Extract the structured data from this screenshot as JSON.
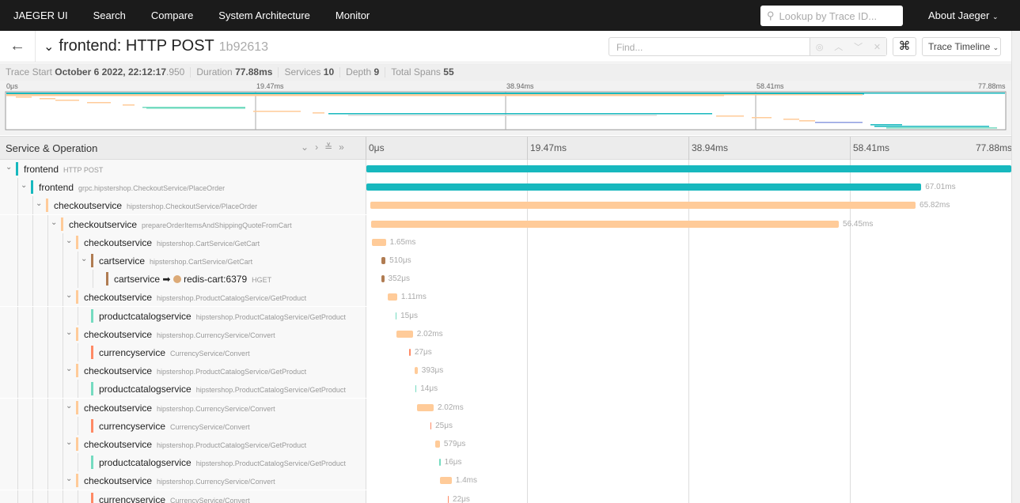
{
  "nav": {
    "brand": "JAEGER UI",
    "items": [
      "Search",
      "Compare",
      "System Architecture",
      "Monitor"
    ],
    "lookup_placeholder": "Lookup by Trace ID...",
    "about": "About Jaeger"
  },
  "header": {
    "title": "frontend: HTTP POST",
    "trace_id": "1b92613",
    "find_placeholder": "Find...",
    "view_label": "Trace Timeline"
  },
  "meta": {
    "trace_start_label": "Trace Start",
    "trace_start": "October 6 2022, 22:12:17",
    "trace_start_ms": ".950",
    "duration_label": "Duration",
    "duration": "77.88ms",
    "services_label": "Services",
    "services": "10",
    "depth_label": "Depth",
    "depth": "9",
    "total_spans_label": "Total Spans",
    "total_spans": "55"
  },
  "ticks": [
    "0μs",
    "19.47ms",
    "38.94ms",
    "58.41ms",
    "77.88ms"
  ],
  "timeline_header": "Service & Operation",
  "total_ms": 77.88,
  "colors": {
    "frontend": "#17b8be",
    "checkoutservice": "#ffcb99",
    "cartservice": "#b07c52",
    "productcatalogservice": "#75dbc0",
    "currencyservice": "#ff8a65"
  },
  "spans": [
    {
      "service": "frontend",
      "op": "HTTP POST",
      "level": 0,
      "expanded": true,
      "start": 0,
      "dur": 77.88,
      "label": ""
    },
    {
      "service": "frontend",
      "op": "grpc.hipstershop.CheckoutService/PlaceOrder",
      "level": 1,
      "expanded": true,
      "start": 0,
      "dur": 67.01,
      "label": "67.01ms"
    },
    {
      "service": "checkoutservice",
      "op": "hipstershop.CheckoutService/PlaceOrder",
      "level": 2,
      "expanded": true,
      "start": 0.5,
      "dur": 65.82,
      "label": "65.82ms"
    },
    {
      "service": "checkoutservice",
      "op": "prepareOrderItemsAndShippingQuoteFromCart",
      "level": 3,
      "expanded": true,
      "start": 0.6,
      "dur": 56.45,
      "label": "56.45ms"
    },
    {
      "service": "checkoutservice",
      "op": "hipstershop.CartService/GetCart",
      "level": 4,
      "expanded": true,
      "start": 0.7,
      "dur": 1.65,
      "label": "1.65ms"
    },
    {
      "service": "cartservice",
      "op": "hipstershop.CartService/GetCart",
      "level": 5,
      "expanded": true,
      "start": 1.8,
      "dur": 0.51,
      "label": "510μs"
    },
    {
      "service": "cartservice",
      "peer": "redis-cart:6379",
      "op": "HGET",
      "level": 6,
      "expanded": null,
      "start": 1.8,
      "dur": 0.352,
      "label": "352μs"
    },
    {
      "service": "checkoutservice",
      "op": "hipstershop.ProductCatalogService/GetProduct",
      "level": 4,
      "expanded": true,
      "start": 2.6,
      "dur": 1.11,
      "label": "1.11ms"
    },
    {
      "service": "productcatalogservice",
      "op": "hipstershop.ProductCatalogService/GetProduct",
      "level": 5,
      "expanded": null,
      "start": 3.5,
      "dur": 0.015,
      "label": "15μs"
    },
    {
      "service": "checkoutservice",
      "op": "hipstershop.CurrencyService/Convert",
      "level": 4,
      "expanded": true,
      "start": 3.6,
      "dur": 2.02,
      "label": "2.02ms"
    },
    {
      "service": "currencyservice",
      "op": "CurrencyService/Convert",
      "level": 5,
      "expanded": null,
      "start": 5.2,
      "dur": 0.027,
      "label": "27μs"
    },
    {
      "service": "checkoutservice",
      "op": "hipstershop.ProductCatalogService/GetProduct",
      "level": 4,
      "expanded": true,
      "start": 5.8,
      "dur": 0.393,
      "label": "393μs"
    },
    {
      "service": "productcatalogservice",
      "op": "hipstershop.ProductCatalogService/GetProduct",
      "level": 5,
      "expanded": null,
      "start": 5.9,
      "dur": 0.014,
      "label": "14μs"
    },
    {
      "service": "checkoutservice",
      "op": "hipstershop.CurrencyService/Convert",
      "level": 4,
      "expanded": true,
      "start": 6.1,
      "dur": 2.02,
      "label": "2.02ms"
    },
    {
      "service": "currencyservice",
      "op": "CurrencyService/Convert",
      "level": 5,
      "expanded": null,
      "start": 7.7,
      "dur": 0.025,
      "label": "25μs"
    },
    {
      "service": "checkoutservice",
      "op": "hipstershop.ProductCatalogService/GetProduct",
      "level": 4,
      "expanded": true,
      "start": 8.3,
      "dur": 0.579,
      "label": "579μs"
    },
    {
      "service": "productcatalogservice",
      "op": "hipstershop.ProductCatalogService/GetProduct",
      "level": 5,
      "expanded": null,
      "start": 8.8,
      "dur": 0.016,
      "label": "16μs"
    },
    {
      "service": "checkoutservice",
      "op": "hipstershop.CurrencyService/Convert",
      "level": 4,
      "expanded": true,
      "start": 8.9,
      "dur": 1.4,
      "label": "1.4ms"
    },
    {
      "service": "currencyservice",
      "op": "CurrencyService/Convert",
      "level": 5,
      "expanded": null,
      "start": 9.8,
      "dur": 0.022,
      "label": "22μs"
    }
  ]
}
